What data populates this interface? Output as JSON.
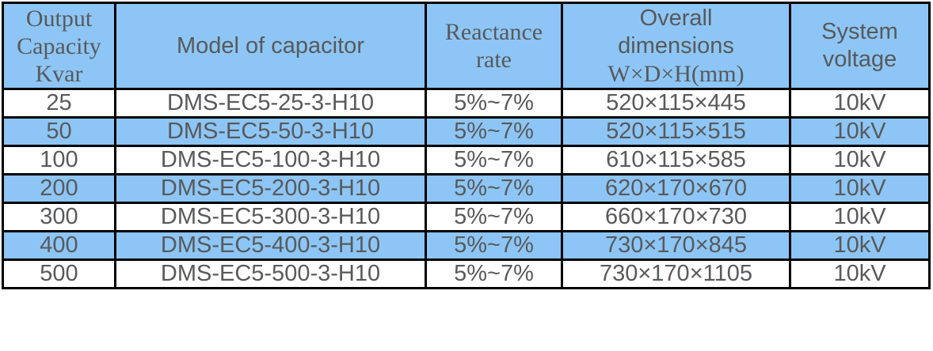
{
  "table": {
    "headers": {
      "output_capacity": {
        "line1": "Output",
        "line2": "Capacity",
        "line3": "Kvar"
      },
      "model": "Model of capacitor",
      "reactance": {
        "line1": "Reactance",
        "line2": "rate"
      },
      "dimensions": {
        "line1": "Overall",
        "line2": "dimensions",
        "line3": "W×D×H(mm)"
      },
      "voltage": {
        "line1": "System",
        "line2": "voltage"
      }
    },
    "rows": [
      {
        "capacity": "25",
        "model": "DMS-EC5-25-3-H10",
        "reactance": "5%~7%",
        "dimensions": "520×115×445",
        "voltage": "10kV"
      },
      {
        "capacity": "50",
        "model": "DMS-EC5-50-3-H10",
        "reactance": "5%~7%",
        "dimensions": "520×115×515",
        "voltage": "10kV"
      },
      {
        "capacity": "100",
        "model": "DMS-EC5-100-3-H10",
        "reactance": "5%~7%",
        "dimensions": "610×115×585",
        "voltage": "10kV"
      },
      {
        "capacity": "200",
        "model": "DMS-EC5-200-3-H10",
        "reactance": "5%~7%",
        "dimensions": "620×170×670",
        "voltage": "10kV"
      },
      {
        "capacity": "300",
        "model": "DMS-EC5-300-3-H10",
        "reactance": "5%~7%",
        "dimensions": "660×170×730",
        "voltage": "10kV"
      },
      {
        "capacity": "400",
        "model": "DMS-EC5-400-3-H10",
        "reactance": "5%~7%",
        "dimensions": "730×170×845",
        "voltage": "10kV"
      },
      {
        "capacity": "500",
        "model": "DMS-EC5-500-3-H10",
        "reactance": "5%~7%",
        "dimensions": "730×170×1105",
        "voltage": "10kV"
      }
    ]
  },
  "colors": {
    "header_bg": "#8dc6f6",
    "alt_row_bg": "#8dc6f6",
    "border": "#000000",
    "text": "#58595b",
    "page_bg": "#ffffff"
  }
}
